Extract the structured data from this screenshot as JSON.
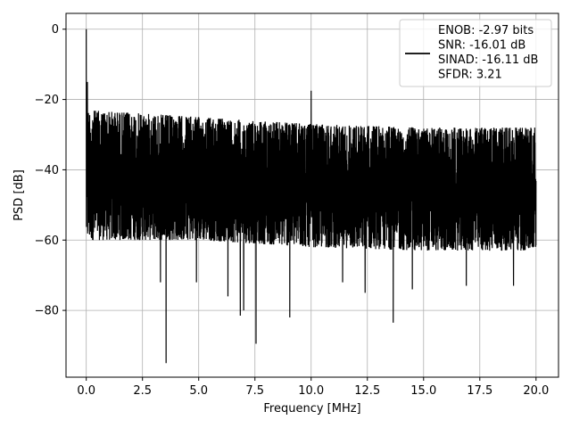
{
  "chart_data": {
    "type": "line",
    "title": "",
    "xlabel": "Frequency [MHz]",
    "ylabel": "PSD [dB]",
    "xlim": [
      -0.9,
      21.0
    ],
    "ylim": [
      -99,
      4.5
    ],
    "x_ticks": [
      0.0,
      2.5,
      5.0,
      7.5,
      10.0,
      12.5,
      15.0,
      17.5,
      20.0
    ],
    "x_tick_labels": [
      "0.0",
      "2.5",
      "5.0",
      "7.5",
      "10.0",
      "12.5",
      "15.0",
      "17.5",
      "20.0"
    ],
    "y_ticks": [
      0,
      -20,
      -40,
      -60,
      -80
    ],
    "y_tick_labels": [
      "0",
      "−20",
      "−40",
      "−60",
      "−80"
    ],
    "grid": true,
    "legend_position": "top-right",
    "legend": [
      "ENOB: -2.97 bits",
      "SNR: -16.01 dB",
      "SINAD: -16.11 dB",
      "SFDR: 3.21"
    ],
    "series": [
      {
        "color": "#000000",
        "x_range": [
          0.0,
          20.0
        ],
        "noise_upper_envelope": [
          [
            0.0,
            -23
          ],
          [
            5.0,
            -25
          ],
          [
            10.0,
            -27
          ],
          [
            15.0,
            -28
          ],
          [
            20.0,
            -28
          ]
        ],
        "noise_lower_envelope": [
          [
            0.0,
            -60
          ],
          [
            5.0,
            -60
          ],
          [
            10.0,
            -62
          ],
          [
            15.0,
            -63
          ],
          [
            20.0,
            -63
          ]
        ],
        "peaks": [
          {
            "x": 0.0,
            "y": 0
          },
          {
            "x": 0.05,
            "y": -15
          },
          {
            "x": 10.0,
            "y": -17.5
          }
        ],
        "dips": [
          {
            "x": 3.55,
            "y": -95
          },
          {
            "x": 7.55,
            "y": -89.5
          },
          {
            "x": 13.65,
            "y": -83.5
          },
          {
            "x": 9.05,
            "y": -82
          },
          {
            "x": 6.85,
            "y": -81.5
          },
          {
            "x": 7.0,
            "y": -80
          },
          {
            "x": 6.3,
            "y": -76
          },
          {
            "x": 4.9,
            "y": -72
          },
          {
            "x": 3.3,
            "y": -72
          },
          {
            "x": 11.4,
            "y": -72
          },
          {
            "x": 12.4,
            "y": -75
          },
          {
            "x": 14.5,
            "y": -74
          },
          {
            "x": 16.9,
            "y": -73
          },
          {
            "x": 19.0,
            "y": -73
          }
        ]
      }
    ]
  }
}
